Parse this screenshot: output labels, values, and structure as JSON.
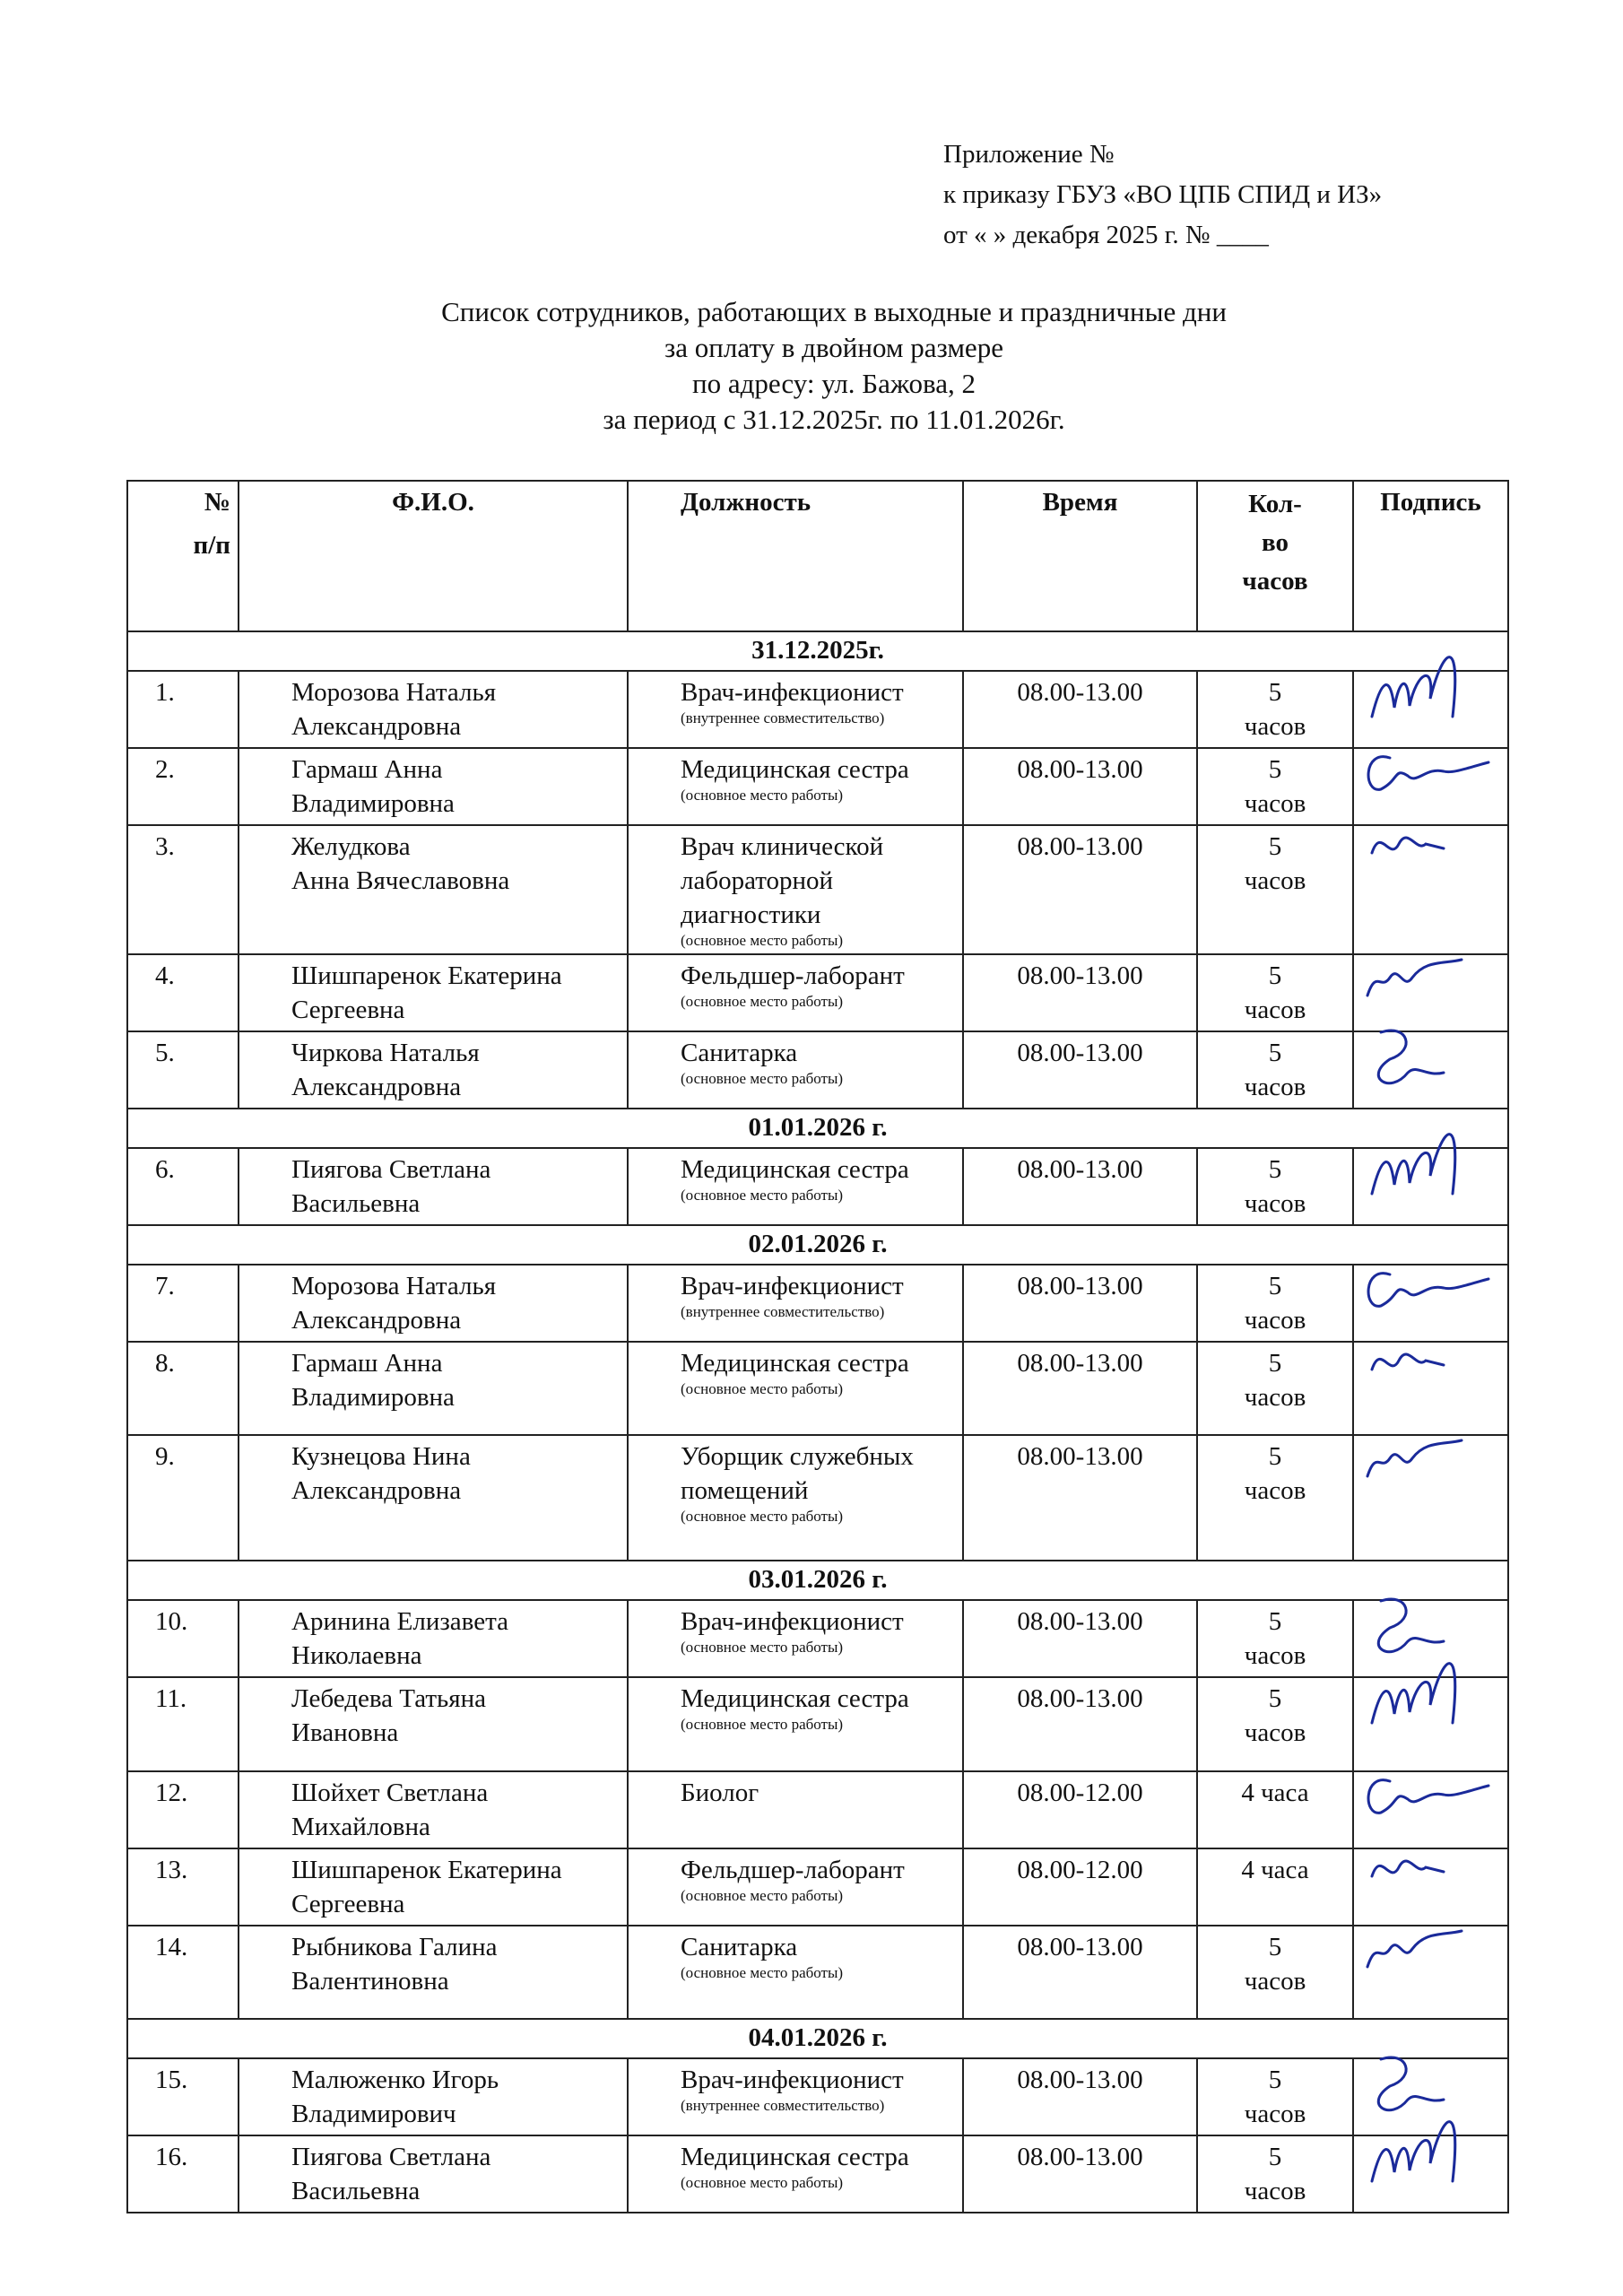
{
  "annex": {
    "line1": "Приложение №",
    "line2": "к приказу ГБУЗ «ВО ЦПБ СПИД и ИЗ»",
    "line3": "от «    »  декабря  2025 г. № ____"
  },
  "title": {
    "line1": "Список сотрудников, работающих в выходные и праздничные дни",
    "line2": "за оплату в двойном размере",
    "line3": "по адресу: ул. Бажова, 2",
    "line4": "за период с 31.12.2025г. по 11.01.2026г."
  },
  "table": {
    "headers": {
      "num1": "№",
      "num2": "п/п",
      "fio": "Ф.И.О.",
      "position": "Должность",
      "time": "Время",
      "hours1": "Кол-",
      "hours2": "во",
      "hours3": "часов",
      "signature": "Подпись"
    },
    "groups": [
      {
        "date": "31.12.2025г.",
        "rows": [
          {
            "n": "1.",
            "fio1": "Морозова Наталья",
            "fio2": "Александровна",
            "pos": "Врач-инфекционист",
            "note": "(внутреннее совместительство)",
            "time": "08.00-13.00",
            "h1": "5",
            "h2": "часов"
          },
          {
            "n": "2.",
            "fio1": "Гармаш Анна",
            "fio2": "Владимировна",
            "pos": "Медицинская сестра",
            "note": "(основное место работы)",
            "time": "08.00-13.00",
            "h1": "5",
            "h2": "часов"
          },
          {
            "n": "3.",
            "fio1": "Желудкова",
            "fio2": "Анна Вячеславовна",
            "pos": "Врач клинической лабораторной диагностики",
            "note": "(основное место работы)",
            "time": "08.00-13.00",
            "h1": "5",
            "h2": "часов"
          },
          {
            "n": "4.",
            "fio1": "Шишпаренок Екатерина",
            "fio2": "Сергеевна",
            "pos": "Фельдшер-лаборант",
            "note": "(основное место работы)",
            "time": "08.00-13.00",
            "h1": "5",
            "h2": "часов"
          },
          {
            "n": "5.",
            "fio1": "Чиркова Наталья",
            "fio2": "Александровна",
            "pos": "Санитарка",
            "note": "(основное место работы)",
            "time": "08.00-13.00",
            "h1": "5",
            "h2": "часов"
          }
        ]
      },
      {
        "date": "01.01.2026 г.",
        "rows": [
          {
            "n": "6.",
            "fio1": "Пиягова Светлана",
            "fio2": "Васильевна",
            "pos": "Медицинская сестра",
            "note": "(основное место работы)",
            "time": "08.00-13.00",
            "h1": "5",
            "h2": "часов"
          }
        ]
      },
      {
        "date": "02.01.2026 г.",
        "rows": [
          {
            "n": "7.",
            "fio1": "Морозова Наталья",
            "fio2": "Александровна",
            "pos": "Врач-инфекционист",
            "note": "(внутреннее совместительство)",
            "time": "08.00-13.00",
            "h1": "5",
            "h2": "часов"
          },
          {
            "n": "8.",
            "fio1": "Гармаш Анна",
            "fio2": "Владимировна",
            "pos": "Медицинская сестра",
            "note": "(основное место работы)",
            "time": "08.00-13.00",
            "h1": "5",
            "h2": "часов"
          },
          {
            "n": "9.",
            "fio1": "Кузнецова Нина",
            "fio2": "Александровна",
            "pos": "Уборщик служебных помещений",
            "note": "(основное место работы)",
            "time": "08.00-13.00",
            "h1": "5",
            "h2": "часов"
          }
        ]
      },
      {
        "date": "03.01.2026 г.",
        "rows": [
          {
            "n": "10.",
            "fio1": "Аринина Елизавета",
            "fio2": "Николаевна",
            "pos": "Врач-инфекционист",
            "note": "(основное место работы)",
            "time": "08.00-13.00",
            "h1": "5",
            "h2": "часов"
          },
          {
            "n": "11.",
            "fio1": "Лебедева Татьяна",
            "fio2": "Ивановна",
            "pos": "Медицинская сестра",
            "note": "(основное место работы)",
            "time": "08.00-13.00",
            "h1": "5",
            "h2": "часов"
          },
          {
            "n": "12.",
            "fio1": "Шойхет Светлана",
            "fio2": "Михайловна",
            "pos": "Биолог",
            "note": "",
            "time": "08.00-12.00",
            "h1": "4 часа",
            "h2": ""
          },
          {
            "n": "13.",
            "fio1": "Шишпаренок Екатерина",
            "fio2": "Сергеевна",
            "pos": "Фельдшер-лаборант",
            "note": "(основное место работы)",
            "time": "08.00-12.00",
            "h1": "4 часа",
            "h2": ""
          },
          {
            "n": "14.",
            "fio1": "Рыбникова Галина",
            "fio2": "Валентиновна",
            "pos": "Санитарка",
            "note": "(основное место работы)",
            "time": "08.00-13.00",
            "h1": "5",
            "h2": "часов"
          }
        ]
      },
      {
        "date": "04.01.2026 г.",
        "rows": [
          {
            "n": "15.",
            "fio1": "Малюженко Игорь",
            "fio2": "Владимирович",
            "pos": "Врач-инфекционист",
            "note": "(внутреннее совместительство)",
            "time": "08.00-13.00",
            "h1": "5",
            "h2": "часов"
          },
          {
            "n": "16.",
            "fio1": "Пиягова Светлана",
            "fio2": "Васильевна",
            "pos": "Медицинская сестра",
            "note": "(основное место работы)",
            "time": "08.00-13.00",
            "h1": "5",
            "h2": "часов"
          }
        ]
      }
    ]
  },
  "colors": {
    "ink": "#111111",
    "signature": "#1a2a9a"
  }
}
